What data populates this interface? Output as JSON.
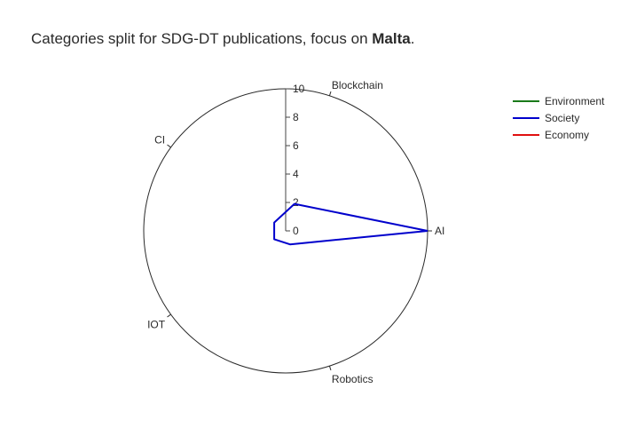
{
  "title": {
    "prefix": "Categories split for SDG-DT publications, focus on ",
    "bold": "Malta",
    "suffix": "."
  },
  "chart_data": {
    "type": "radar",
    "axes": [
      "AI",
      "Blockchain",
      "CI",
      "IOT",
      "Robotics"
    ],
    "radial_range": [
      0,
      10
    ],
    "radial_ticks": [
      0,
      2,
      4,
      6,
      8,
      10
    ],
    "series": [
      {
        "name": "Environment",
        "color": "#1a7a1a",
        "values": [
          0,
          0,
          0,
          0,
          0
        ]
      },
      {
        "name": "Society",
        "color": "#0000cc",
        "values": [
          10,
          2,
          1,
          1,
          1
        ]
      },
      {
        "name": "Economy",
        "color": "#e01010",
        "values": [
          0,
          0,
          0,
          0,
          0
        ]
      }
    ],
    "legend_position": "top-right"
  }
}
